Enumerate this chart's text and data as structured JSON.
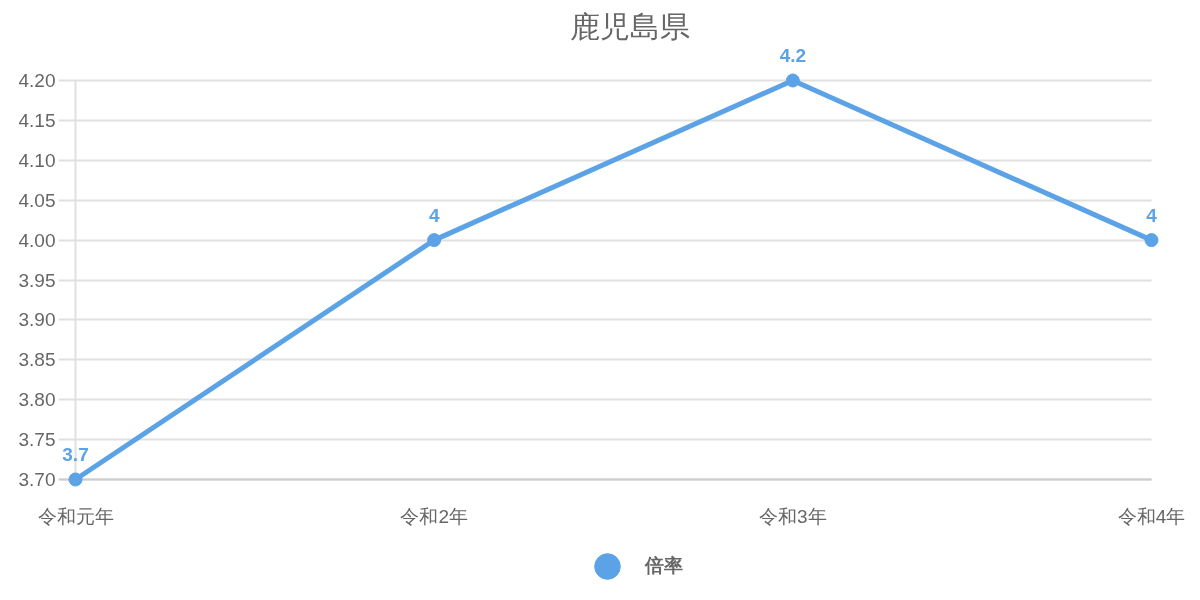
{
  "chart_data": {
    "type": "line",
    "title": "鹿児島県",
    "categories": [
      "令和元年",
      "令和2年",
      "令和3年",
      "令和4年"
    ],
    "series": [
      {
        "name": "倍率",
        "color": "#5ba3e6",
        "values": [
          3.7,
          4,
          4.2,
          4
        ]
      }
    ],
    "ylim": [
      3.7,
      4.2
    ],
    "yticks": [
      {
        "value": 3.7,
        "label": "3.70"
      },
      {
        "value": 3.75,
        "label": "3.75"
      },
      {
        "value": 3.8,
        "label": "3.80"
      },
      {
        "value": 3.85,
        "label": "3.85"
      },
      {
        "value": 3.9,
        "label": "3.90"
      },
      {
        "value": 3.95,
        "label": "3.95"
      },
      {
        "value": 4.0,
        "label": "4.00"
      },
      {
        "value": 4.05,
        "label": "4.05"
      },
      {
        "value": 4.1,
        "label": "4.10"
      },
      {
        "value": 4.15,
        "label": "4.15"
      },
      {
        "value": 4.2,
        "label": "4.20"
      }
    ],
    "grid": "y",
    "legend": "bottom",
    "marker": "circle",
    "line_style": "solid",
    "data_labels": true
  }
}
